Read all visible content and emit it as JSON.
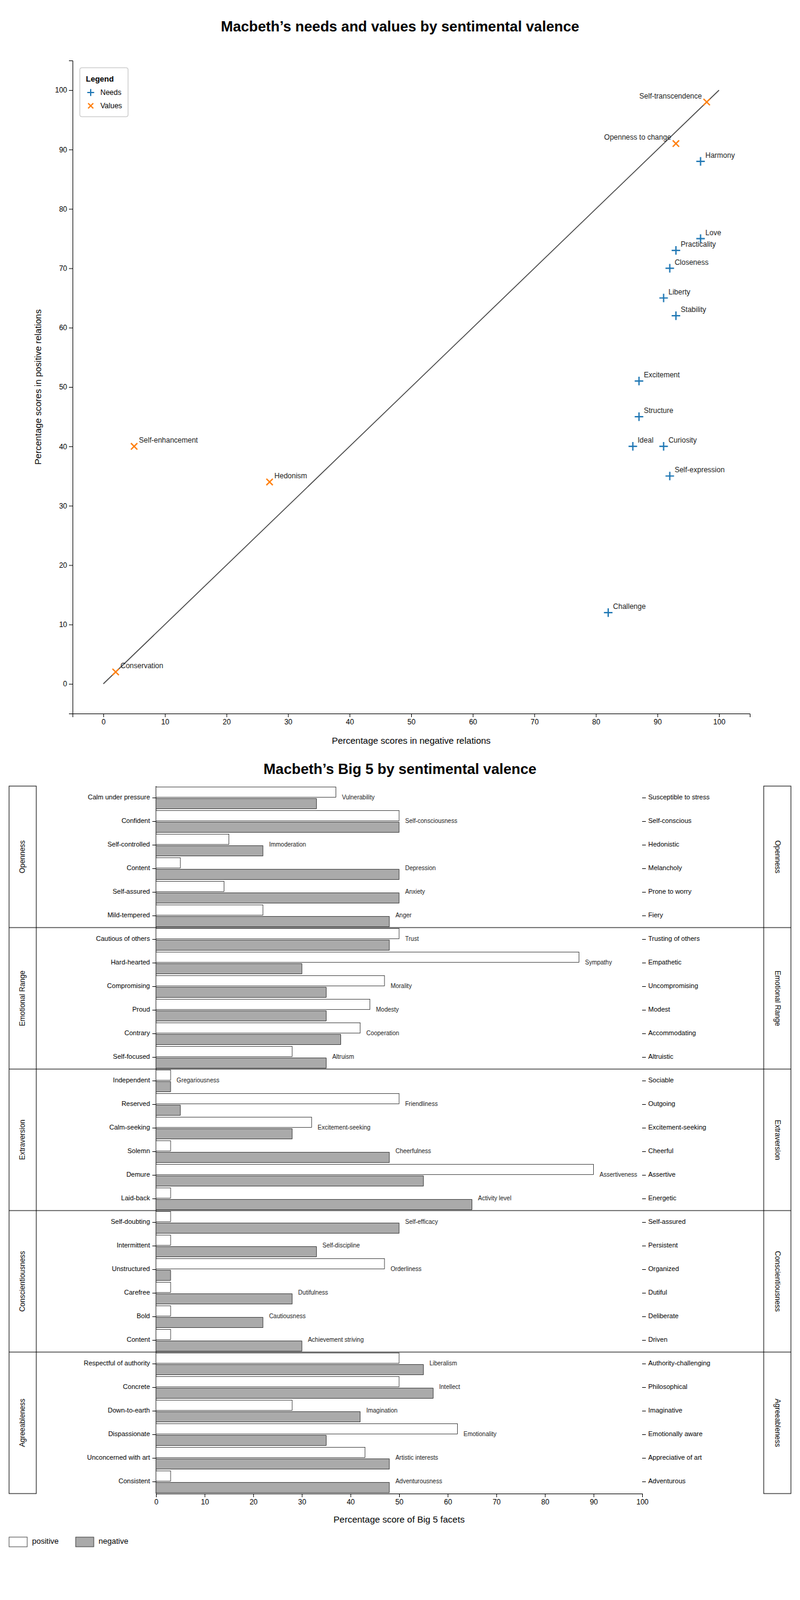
{
  "chart_data": [
    {
      "type": "scatter",
      "title": "Macbeth’s needs and values by sentimental valence",
      "xlabel": "Percentage scores in negative relations",
      "ylabel": "Percentage scores in positive relations",
      "xlim": [
        -5,
        105
      ],
      "ylim": [
        -5,
        105
      ],
      "xticks": [
        0,
        10,
        20,
        30,
        40,
        50,
        60,
        70,
        80,
        90,
        100
      ],
      "yticks": [
        0,
        10,
        20,
        30,
        40,
        50,
        60,
        70,
        80,
        90,
        100
      ],
      "grid": false,
      "legend": "upper left",
      "legend_title": "Legend",
      "reference_line": {
        "x": [
          0,
          100
        ],
        "values": [
          0,
          100
        ]
      },
      "series": [
        {
          "name": "Needs",
          "marker": "plus",
          "x": [
            82,
            87,
            97,
            91,
            92,
            86,
            91,
            97,
            93,
            87,
            92,
            93
          ],
          "values": [
            12,
            51,
            88,
            40,
            35,
            40,
            65,
            75,
            73,
            45,
            70,
            62
          ],
          "labels": [
            "Challenge",
            "Excitement",
            "Harmony",
            "Curiosity",
            "Self-expression",
            "Ideal",
            "Liberty",
            "Love",
            "Practicality",
            "Structure",
            "Closeness",
            "Stability"
          ]
        },
        {
          "name": "Values",
          "marker": "x",
          "x": [
            98,
            93,
            2,
            5,
            27
          ],
          "values": [
            98,
            91,
            2,
            40,
            34
          ],
          "labels": [
            "Self-transcendence",
            "Openness to change",
            "Conservation",
            "Self-enhancement",
            "Hedonism"
          ]
        }
      ]
    },
    {
      "type": "bar",
      "orientation": "horizontal",
      "title": "Macbeth’s Big 5 by sentimental valence",
      "xlabel": "Percentage score of Big 5 facets",
      "xlim": [
        0,
        100
      ],
      "xticks": [
        0,
        10,
        20,
        30,
        40,
        50,
        60,
        70,
        80,
        90,
        100
      ],
      "grid": false,
      "legend": "bottom",
      "tick_labels": "x",
      "categories": [
        "Vulnerability",
        "Self-consciousness",
        "Immoderation",
        "Depression",
        "Anxiety",
        "Anger",
        "Trust",
        "Sympathy",
        "Morality",
        "Modesty",
        "Cooperation",
        "Altruism",
        "Gregariousness",
        "Friendliness",
        "Excitement-seeking",
        "Cheerfulness",
        "Assertiveness",
        "Activity level",
        "Self-efficacy",
        "Self-discipline",
        "Orderliness",
        "Dutifulness",
        "Cautiousness",
        "Achievement striving",
        "Liberalism",
        "Intellect",
        "Imagination",
        "Emotionality",
        "Artistic interests",
        "Adventurousness"
      ],
      "groups": [
        "Openness",
        "Openness",
        "Openness",
        "Openness",
        "Openness",
        "Openness",
        "Emotional Range",
        "Emotional Range",
        "Emotional Range",
        "Emotional Range",
        "Emotional Range",
        "Emotional Range",
        "Extraversion",
        "Extraversion",
        "Extraversion",
        "Extraversion",
        "Extraversion",
        "Extraversion",
        "Conscientiousness",
        "Conscientiousness",
        "Conscientiousness",
        "Conscientiousness",
        "Conscientiousness",
        "Conscientiousness",
        "Agreeableness",
        "Agreeableness",
        "Agreeableness",
        "Agreeableness",
        "Agreeableness",
        "Agreeableness"
      ],
      "left_labels": [
        "Calm under pressure",
        "Confident",
        "Self-controlled",
        "Content",
        "Self-assured",
        "Mild-tempered",
        "Cautious of others",
        "Hard-hearted",
        "Compromising",
        "Proud",
        "Contrary",
        "Self-focused",
        "Independent",
        "Reserved",
        "Calm-seeking",
        "Solemn",
        "Demure",
        "Laid-back",
        "Self-doubting",
        "Intermittent",
        "Unstructured",
        "Carefree",
        "Bold",
        "Content",
        "Respectful of authority",
        "Concrete",
        "Down-to-earth",
        "Dispassionate",
        "Unconcerned with art",
        "Consistent"
      ],
      "right_labels": [
        "Susceptible to stress",
        "Self-conscious",
        "Hedonistic",
        "Melancholy",
        "Prone to worry",
        "Fiery",
        "Trusting of others",
        "Empathetic",
        "Uncompromising",
        "Modest",
        "Accommodating",
        "Altruistic",
        "Sociable",
        "Outgoing",
        "Excitement-seeking",
        "Cheerful",
        "Assertive",
        "Energetic",
        "Self-assured",
        "Persistent",
        "Organized",
        "Dutiful",
        "Deliberate",
        "Driven",
        "Authority-challenging",
        "Philosophical",
        "Imaginative",
        "Emotionally aware",
        "Appreciative of art",
        "Adventurous"
      ],
      "series": [
        {
          "name": "positive",
          "color": "#ffffff",
          "values": [
            37,
            50,
            15,
            5,
            14,
            22,
            50,
            87,
            47,
            44,
            42,
            28,
            3,
            50,
            32,
            3,
            90,
            3,
            3,
            3,
            47,
            3,
            3,
            3,
            50,
            50,
            28,
            62,
            43,
            3
          ]
        },
        {
          "name": "negative",
          "color": "#aaaaaa",
          "values": [
            33,
            50,
            22,
            50,
            50,
            48,
            48,
            30,
            35,
            35,
            38,
            35,
            3,
            5,
            28,
            48,
            55,
            65,
            50,
            33,
            3,
            28,
            22,
            30,
            55,
            57,
            42,
            35,
            48,
            48
          ]
        }
      ]
    }
  ]
}
